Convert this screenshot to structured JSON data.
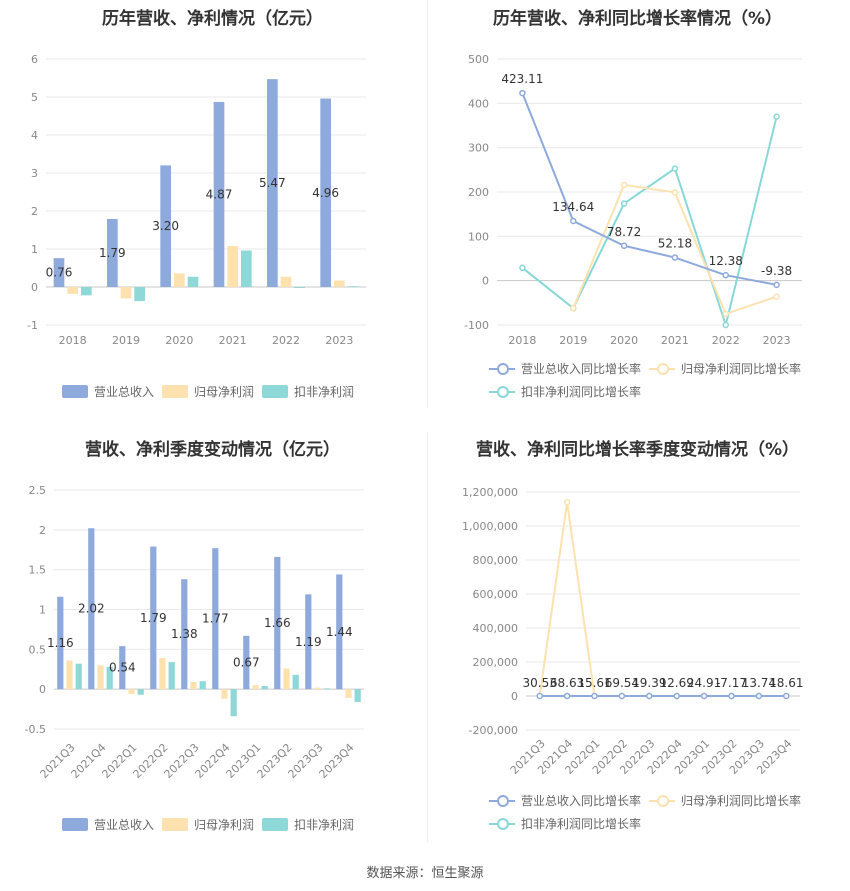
{
  "colors": {
    "blue": "#8eaadc",
    "yellow": "#fde2b0",
    "teal": "#8ed8d8",
    "line_blue": "#8eaadc",
    "line_yellow": "#fde2b0",
    "line_teal": "#88d8d8"
  },
  "source": "数据来源：恒生聚源",
  "legends": {
    "bars": [
      "营业总收入",
      "归母净利润",
      "扣非净利润"
    ],
    "lines": [
      "营业总收入同比增长率",
      "归母净利润同比增长率",
      "扣非净利润同比增长率"
    ]
  },
  "chart_data": [
    {
      "type": "bar",
      "title": "历年营收、净利情况（亿元）",
      "categories": [
        "2018",
        "2019",
        "2020",
        "2021",
        "2022",
        "2023"
      ],
      "ylim": [
        -1,
        6
      ],
      "yticks": [
        -1,
        0,
        1,
        2,
        3,
        4,
        5,
        6
      ],
      "grid": true,
      "legend_position": "bottom",
      "series": [
        {
          "name": "营业总收入",
          "values": [
            0.76,
            1.79,
            3.2,
            4.87,
            5.47,
            4.96
          ],
          "labels": [
            "0.76",
            "1.79",
            "3.20",
            "4.87",
            "5.47",
            "4.96"
          ]
        },
        {
          "name": "归母净利润",
          "values": [
            -0.18,
            -0.3,
            0.36,
            1.08,
            0.27,
            0.17
          ]
        },
        {
          "name": "扣非净利润",
          "values": [
            -0.22,
            -0.37,
            0.27,
            0.96,
            0.0,
            0.02
          ]
        }
      ]
    },
    {
      "type": "line",
      "title": "历年营收、净利同比增长率情况（%）",
      "categories": [
        "2018",
        "2019",
        "2020",
        "2021",
        "2022",
        "2023"
      ],
      "ylim": [
        -100,
        500
      ],
      "yticks": [
        -100,
        0,
        100,
        200,
        300,
        400,
        500
      ],
      "grid": true,
      "legend_position": "bottom",
      "series": [
        {
          "name": "营业总收入同比增长率",
          "values": [
            423.11,
            134.64,
            78.72,
            52.18,
            12.38,
            -9.38
          ],
          "labels": [
            "423.11",
            "134.64",
            "78.72",
            "52.18",
            "12.38",
            "-9.38"
          ]
        },
        {
          "name": "归母净利润同比增长率",
          "values": [
            null,
            -62,
            216,
            199,
            -75,
            -36
          ]
        },
        {
          "name": "扣非净利润同比增长率",
          "values": [
            29,
            -62,
            174,
            253,
            -100,
            370
          ]
        }
      ]
    },
    {
      "type": "bar",
      "title": "营收、净利季度变动情况（亿元）",
      "categories": [
        "2021Q3",
        "2021Q4",
        "2022Q1",
        "2022Q2",
        "2022Q3",
        "2022Q4",
        "2023Q1",
        "2023Q2",
        "2023Q3",
        "2023Q4"
      ],
      "ylim": [
        -0.5,
        2.5
      ],
      "yticks": [
        -0.5,
        0,
        0.5,
        1,
        1.5,
        2,
        2.5
      ],
      "grid": true,
      "legend_position": "bottom",
      "series": [
        {
          "name": "营业总收入",
          "values": [
            1.16,
            2.02,
            0.54,
            1.79,
            1.38,
            1.77,
            0.67,
            1.66,
            1.19,
            1.44
          ],
          "labels": [
            "1.16",
            "2.02",
            "0.54",
            "1.79",
            "1.38",
            "1.77",
            "0.67",
            "1.66",
            "1.19",
            "1.44"
          ]
        },
        {
          "name": "归母净利润",
          "values": [
            0.36,
            0.3,
            -0.06,
            0.39,
            0.09,
            -0.12,
            0.05,
            0.26,
            0.02,
            -0.11
          ]
        },
        {
          "name": "扣非净利润",
          "values": [
            0.32,
            0.28,
            -0.07,
            0.34,
            0.1,
            -0.34,
            0.04,
            0.18,
            0.01,
            -0.16
          ]
        }
      ]
    },
    {
      "type": "line",
      "title": "营收、净利同比增长率季度变动情况（%）",
      "categories": [
        "2021Q3",
        "2021Q4",
        "2022Q1",
        "2022Q2",
        "2022Q3",
        "2022Q4",
        "2023Q1",
        "2023Q2",
        "2023Q3",
        "2023Q4"
      ],
      "ylim": [
        -200000,
        1200000
      ],
      "yticks": [
        -200000,
        0,
        200000,
        400000,
        600000,
        800000,
        1000000,
        1200000
      ],
      "ytick_labels": [
        "-200,000",
        "0",
        "200,000",
        "400,000",
        "600,000",
        "800,000",
        "1,000,000",
        "1,200,000"
      ],
      "grid": true,
      "legend_position": "bottom",
      "series": [
        {
          "name": "营业总收入同比增长率",
          "values": [
            30.53,
            68.63,
            15.61,
            69.54,
            19.39,
            12.69,
            24.91,
            -7.17,
            13.74,
            18.61
          ],
          "labels": [
            "30.53",
            "68.63",
            "15.61",
            "69.54",
            "19.39",
            "12.69",
            "24.91",
            "-7.17",
            "13.74",
            "18.61"
          ]
        },
        {
          "name": "归母净利润同比增长率",
          "values": [
            0,
            1140000,
            0,
            0,
            0,
            0,
            0,
            0,
            0,
            0
          ]
        },
        {
          "name": "扣非净利润同比增长率",
          "values": [
            0,
            0,
            0,
            0,
            0,
            0,
            0,
            0,
            0,
            0
          ]
        }
      ]
    }
  ]
}
